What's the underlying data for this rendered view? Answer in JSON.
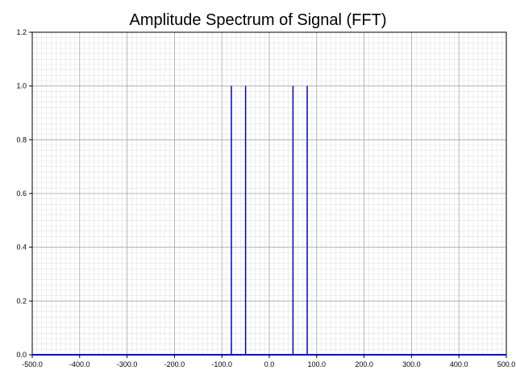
{
  "chart_data": {
    "type": "line",
    "title": "Amplitude Spectrum of Signal (FFT)",
    "xlabel": "",
    "ylabel": "",
    "xlim": [
      -500,
      500
    ],
    "ylim": [
      0,
      1.2
    ],
    "x_ticks": [
      -500,
      -400,
      -300,
      -200,
      -100,
      0,
      100,
      200,
      300,
      400,
      500
    ],
    "x_tick_labels": [
      "-500.0",
      "-400.0",
      "-300.0",
      "-200.0",
      "-100.0",
      "0.0",
      "100.0",
      "200.0",
      "300.0",
      "400.0",
      "500.0"
    ],
    "y_ticks": [
      0,
      0.2,
      0.4,
      0.6,
      0.8,
      1.0,
      1.2
    ],
    "y_tick_labels": [
      "0.0",
      "0.2",
      "0.4",
      "0.6",
      "0.8",
      "1.0",
      "1.2"
    ],
    "grid": true,
    "legend": "none",
    "series_color": "#0000cc",
    "peaks": [
      {
        "x": -80,
        "y": 1.0
      },
      {
        "x": -50,
        "y": 1.0
      },
      {
        "x": 50,
        "y": 1.0
      },
      {
        "x": 80,
        "y": 1.0
      }
    ],
    "baseline_y": 0
  }
}
